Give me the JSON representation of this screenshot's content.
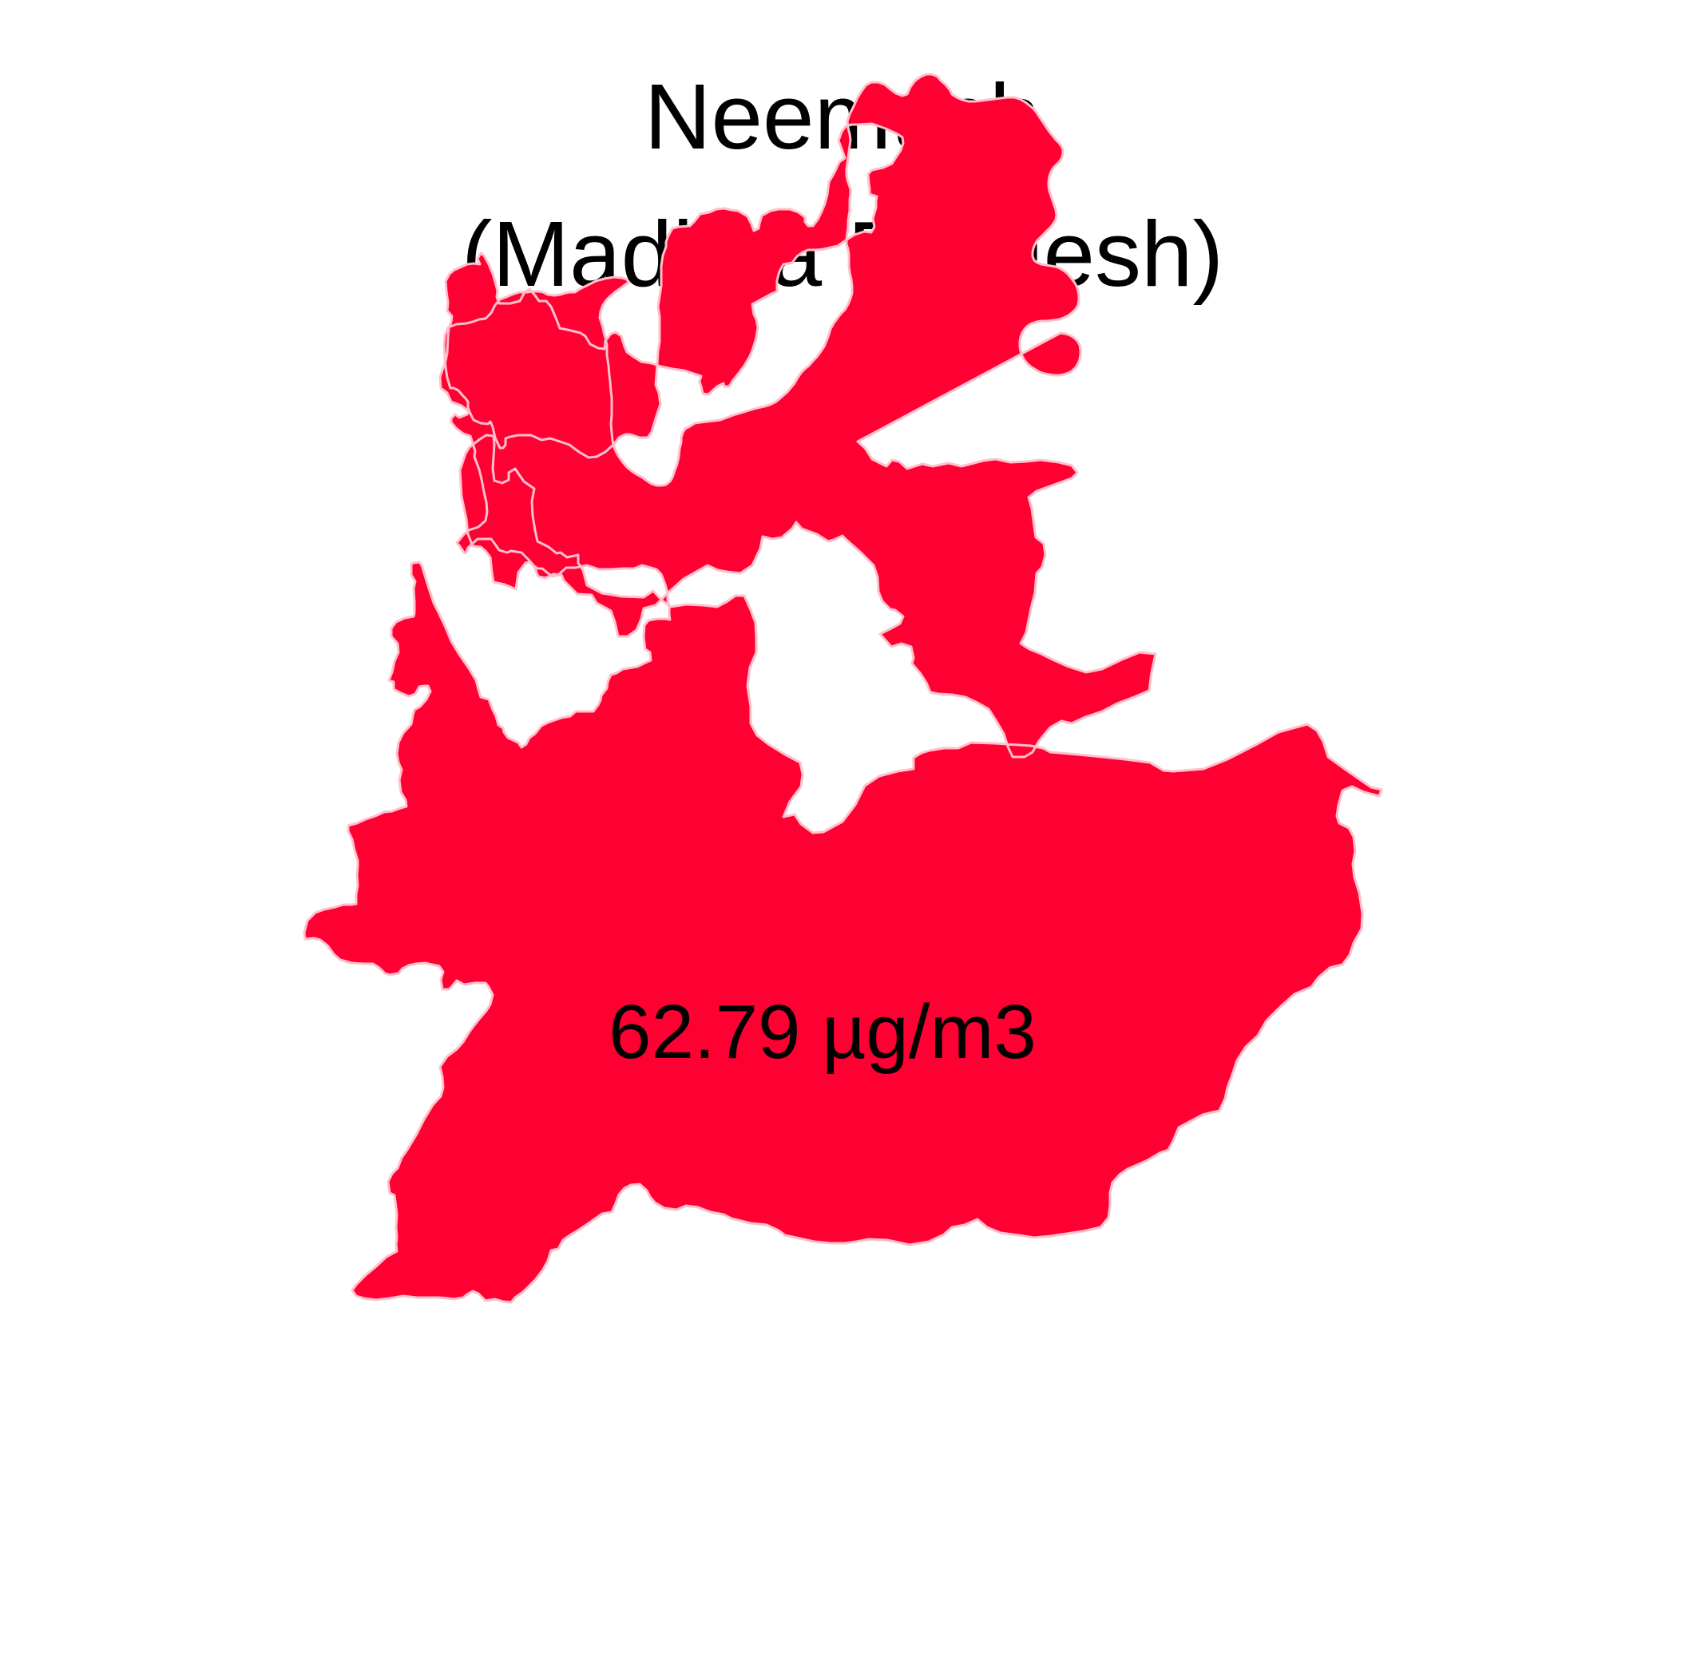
{
  "map": {
    "title_line1": "Neemuch",
    "title_line2": "(Madhya Pradesh)",
    "region_name": "Neemuch",
    "value_label": "62.79 µg/m3",
    "fill_color": "#ff0033",
    "border_color": "#ffc0cb",
    "text_color": "#000000",
    "background_color": "#ffffff"
  }
}
